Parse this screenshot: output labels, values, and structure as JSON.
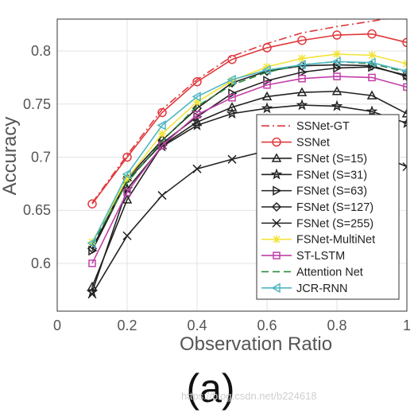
{
  "chart_data": {
    "type": "line",
    "xlabel": "Observation Ratio",
    "ylabel": "Accuracy",
    "xlim": [
      0,
      1
    ],
    "ylim": [
      0.555,
      0.83
    ],
    "xticks": [
      0,
      0.2,
      0.4,
      0.6,
      0.8,
      1
    ],
    "xtick_labels": [
      "0",
      "0.2",
      "0.4",
      "0.6",
      "0.8",
      "1"
    ],
    "yticks": [
      0.6,
      0.65,
      0.7,
      0.75,
      0.8
    ],
    "ytick_labels": [
      "0.6",
      "0.65",
      "0.7",
      "0.75",
      "0.8"
    ],
    "grid": true,
    "legend_position": "bottom-right",
    "caption": "(a)",
    "watermark": "https://blog.csdn.net/b224618",
    "x": [
      0.1,
      0.2,
      0.3,
      0.4,
      0.5,
      0.6,
      0.7,
      0.8,
      0.9,
      1.0
    ],
    "series": [
      {
        "name": "SSNet-GT",
        "color": "#e0393e",
        "dash": "dashdot",
        "marker": "none",
        "values": [
          0.657,
          0.702,
          0.745,
          0.773,
          0.795,
          0.807,
          0.817,
          0.823,
          0.828,
          0.834
        ]
      },
      {
        "name": "SSNet",
        "color": "#e0393e",
        "dash": "solid",
        "marker": "circle",
        "values": [
          0.656,
          0.7,
          0.742,
          0.771,
          0.792,
          0.803,
          0.81,
          0.815,
          0.816,
          0.808
        ]
      },
      {
        "name": "FSNet (S=15)",
        "color": "#222222",
        "dash": "solid",
        "marker": "triangle-up",
        "values": [
          0.578,
          0.66,
          0.711,
          0.733,
          0.747,
          0.757,
          0.761,
          0.762,
          0.758,
          0.741
        ]
      },
      {
        "name": "FSNet (S=31)",
        "color": "#222222",
        "dash": "solid",
        "marker": "star",
        "values": [
          0.573,
          0.67,
          0.71,
          0.73,
          0.741,
          0.746,
          0.749,
          0.748,
          0.743,
          0.732
        ]
      },
      {
        "name": "FSNet (S=63)",
        "color": "#222222",
        "dash": "solid",
        "marker": "triangle-right",
        "values": [
          0.612,
          0.678,
          0.713,
          0.738,
          0.76,
          0.772,
          0.78,
          0.784,
          0.785,
          0.777
        ]
      },
      {
        "name": "FSNet (S=127)",
        "color": "#222222",
        "dash": "solid",
        "marker": "diamond",
        "values": [
          0.614,
          0.68,
          0.716,
          0.746,
          0.77,
          0.781,
          0.786,
          0.787,
          0.786,
          0.776
        ]
      },
      {
        "name": "FSNet (S=255)",
        "color": "#222222",
        "dash": "solid",
        "marker": "x",
        "values": [
          0.571,
          0.626,
          0.664,
          0.689,
          0.698,
          0.706,
          0.712,
          0.713,
          0.705,
          0.691
        ]
      },
      {
        "name": "FSNet-MultiNet",
        "color": "#f2e33a",
        "dash": "solid",
        "marker": "asterisk",
        "values": [
          0.62,
          0.68,
          0.722,
          0.752,
          0.772,
          0.785,
          0.793,
          0.797,
          0.796,
          0.788
        ]
      },
      {
        "name": "ST-LSTM",
        "color": "#c23fa8",
        "dash": "solid",
        "marker": "square",
        "values": [
          0.6,
          0.667,
          0.711,
          0.74,
          0.756,
          0.768,
          0.774,
          0.776,
          0.775,
          0.766
        ]
      },
      {
        "name": "Attention Net",
        "color": "#2a8a3b",
        "dash": "dashed",
        "marker": "none",
        "values": [
          0.618,
          0.676,
          0.715,
          0.748,
          0.768,
          0.78,
          0.787,
          0.79,
          0.788,
          0.78
        ]
      },
      {
        "name": "JCR-RNN",
        "color": "#4fb7c4",
        "dash": "solid",
        "marker": "triangle-left",
        "values": [
          0.619,
          0.684,
          0.73,
          0.757,
          0.773,
          0.782,
          0.787,
          0.79,
          0.789,
          0.781
        ]
      }
    ]
  }
}
